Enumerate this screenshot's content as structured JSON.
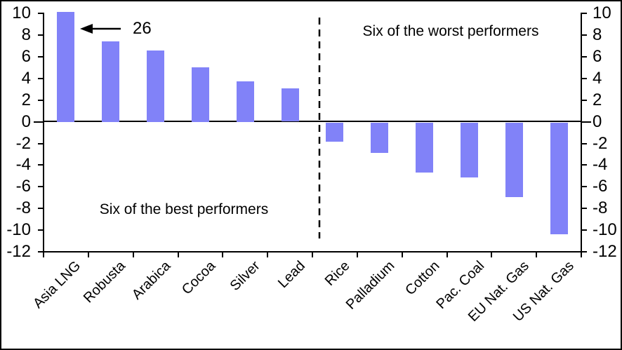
{
  "chart_data": {
    "type": "bar",
    "title": "",
    "categories": [
      "Asia LNG",
      "Robusta",
      "Arabica",
      "Cocoa",
      "Silver",
      "Lead",
      "Rice",
      "Palladium",
      "Cotton",
      "Pac. Coal",
      "EU Nat. Gas",
      "US Nat. Gas"
    ],
    "values": [
      26,
      7.4,
      6.6,
      5.0,
      3.7,
      3.1,
      -1.8,
      -2.8,
      -4.6,
      -5.1,
      -6.9,
      -10.3
    ],
    "clip_max": 10.13,
    "ylim": [
      -12,
      10
    ],
    "yticks": [
      10,
      8,
      6,
      4,
      2,
      0,
      -2,
      -4,
      -6,
      -8,
      -10,
      -12
    ],
    "ytick_step": 2,
    "grid": false,
    "legend": "none",
    "xlabel": "",
    "ylabel": "",
    "bar_color": "#8182F8",
    "axis_color": "#000000",
    "divider_after_category_index": 5,
    "annotations": {
      "truncated_value_label": "26",
      "truncated_category": "Asia LNG",
      "best_label": "Six of the best performers",
      "worst_label": "Six of the worst performers"
    }
  }
}
